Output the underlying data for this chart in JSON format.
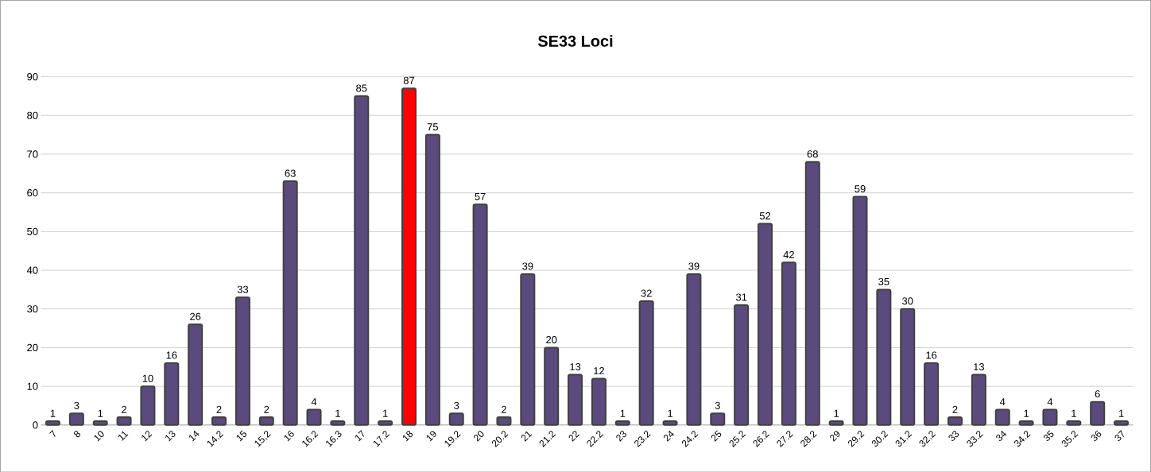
{
  "chart_data": {
    "type": "bar",
    "title": "SE33 Loci",
    "categories": [
      "7",
      "8",
      "10",
      "11",
      "12",
      "13",
      "14",
      "14.2",
      "15",
      "15,2",
      "16",
      "16.2",
      "16.3",
      "17",
      "17.2",
      "18",
      "19",
      "19.2",
      "20",
      "20.2",
      "21",
      "21.2",
      "22",
      "22.2",
      "23",
      "23.2",
      "24",
      "24.2",
      "25",
      "25.2",
      "26.2",
      "27.2",
      "28.2",
      "29",
      "29.2",
      "30.2",
      "31.2",
      "32.2",
      "33",
      "33.2",
      "34",
      "34.2",
      "35",
      "35.2",
      "36",
      "37"
    ],
    "values": [
      1,
      3,
      1,
      2,
      10,
      16,
      26,
      2,
      33,
      2,
      63,
      4,
      1,
      85,
      1,
      87,
      75,
      3,
      57,
      2,
      39,
      20,
      13,
      12,
      1,
      32,
      1,
      39,
      3,
      31,
      52,
      42,
      68,
      1,
      59,
      35,
      30,
      16,
      2,
      13,
      4,
      1,
      4,
      1,
      6,
      1
    ],
    "colors": [
      "#5b4a7e",
      "#5b4a7e",
      "#5b4a7e",
      "#5b4a7e",
      "#5b4a7e",
      "#5b4a7e",
      "#5b4a7e",
      "#5b4a7e",
      "#5b4a7e",
      "#5b4a7e",
      "#5b4a7e",
      "#5b4a7e",
      "#5b4a7e",
      "#5b4a7e",
      "#5b4a7e",
      "#ff0000",
      "#5b4a7e",
      "#5b4a7e",
      "#5b4a7e",
      "#5b4a7e",
      "#5b4a7e",
      "#5b4a7e",
      "#5b4a7e",
      "#5b4a7e",
      "#5b4a7e",
      "#5b4a7e",
      "#5b4a7e",
      "#5b4a7e",
      "#5b4a7e",
      "#5b4a7e",
      "#5b4a7e",
      "#5b4a7e",
      "#5b4a7e",
      "#5b4a7e",
      "#5b4a7e",
      "#5b4a7e",
      "#5b4a7e",
      "#5b4a7e",
      "#5b4a7e",
      "#5b4a7e",
      "#5b4a7e",
      "#5b4a7e",
      "#5b4a7e",
      "#5b4a7e",
      "#5b4a7e",
      "#5b4a7e"
    ],
    "ylim": [
      0,
      90
    ],
    "yticks": [
      0,
      10,
      20,
      30,
      40,
      50,
      60,
      70,
      80,
      90
    ],
    "grid": "y",
    "data_labels": true
  }
}
